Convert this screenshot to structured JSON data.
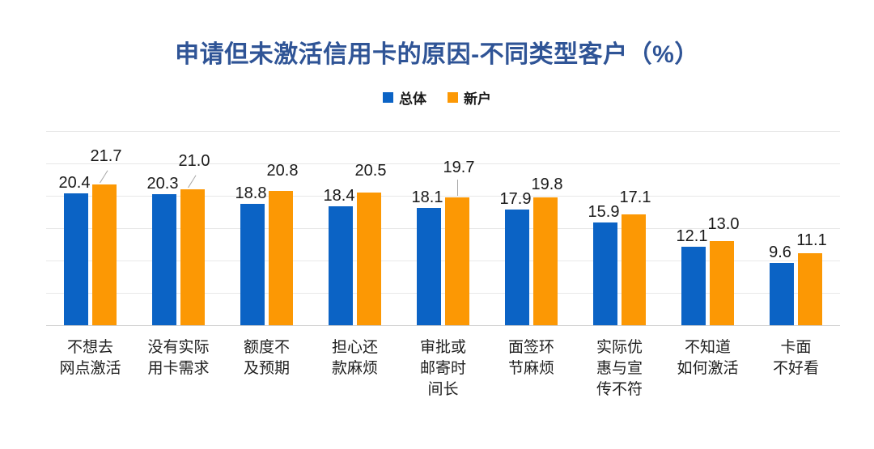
{
  "title": "申请但未激活信用卡的原因-不同类型客户（%）",
  "legend": [
    {
      "label": "总体",
      "color": "#0B63C5"
    },
    {
      "label": "新户",
      "color": "#FC9804"
    }
  ],
  "colors": {
    "title": "#2F5496",
    "series_total": "#0B63C5",
    "series_new": "#FC9804",
    "gridline": "#e8e8e8",
    "axis_line": "#cfcfcf",
    "value_text": "#1a1a1a"
  },
  "chart_data": {
    "type": "bar",
    "title": "申请但未激活信用卡的原因-不同类型客户（%）",
    "categories": [
      [
        "不想去",
        "网点激活"
      ],
      [
        "没有实际",
        "用卡需求"
      ],
      [
        "额度不",
        "及预期"
      ],
      [
        "担心还",
        "款麻烦"
      ],
      [
        "审批或",
        "邮寄时",
        "间长"
      ],
      [
        "面签环",
        "节麻烦"
      ],
      [
        "实际优",
        "惠与宣",
        "传不符"
      ],
      [
        "不知道",
        "如何激活"
      ],
      [
        "卡面",
        "不好看"
      ]
    ],
    "series": [
      {
        "name": "总体",
        "color": "#0B63C5",
        "values": [
          20.4,
          20.3,
          18.8,
          18.4,
          18.1,
          17.9,
          15.9,
          12.1,
          9.6
        ]
      },
      {
        "name": "新户",
        "color": "#FC9804",
        "values": [
          21.7,
          21.0,
          20.8,
          20.5,
          19.7,
          19.8,
          17.1,
          13.0,
          11.1
        ]
      }
    ],
    "xlabel": "",
    "ylabel": "",
    "ylim": [
      0,
      30
    ],
    "grid_step": 5,
    "grid": "on",
    "legend_position": "top",
    "value_labels": "on"
  }
}
